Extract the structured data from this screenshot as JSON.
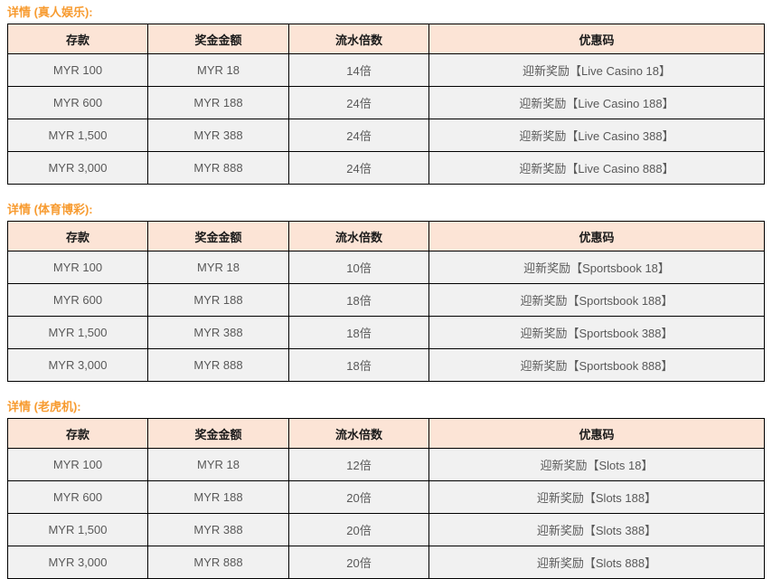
{
  "page": {
    "background": "#ffffff",
    "accent_color": "#F79B30",
    "table_header_bg": "#FCE4D6",
    "table_row_bg": "#F1F1F1",
    "table_border_color": "#000000"
  },
  "columns": [
    "存款",
    "奖金金额",
    "流水倍数",
    "优惠码"
  ],
  "sections": [
    {
      "title": "详情 (真人娱乐):",
      "rows": [
        [
          "MYR 100",
          "MYR 18",
          "14倍",
          "迎新奖励【Live Casino 18】"
        ],
        [
          "MYR 600",
          "MYR 188",
          "24倍",
          "迎新奖励【Live Casino 188】"
        ],
        [
          "MYR 1,500",
          "MYR 388",
          "24倍",
          "迎新奖励【Live Casino 388】"
        ],
        [
          "MYR 3,000",
          "MYR 888",
          "24倍",
          "迎新奖励【Live Casino 888】"
        ]
      ]
    },
    {
      "title": "详情 (体育博彩):",
      "rows": [
        [
          "MYR 100",
          "MYR 18",
          "10倍",
          "迎新奖励【Sportsbook 18】"
        ],
        [
          "MYR 600",
          "MYR 188",
          "18倍",
          "迎新奖励【Sportsbook 188】"
        ],
        [
          "MYR 1,500",
          "MYR 388",
          "18倍",
          "迎新奖励【Sportsbook 388】"
        ],
        [
          "MYR 3,000",
          "MYR 888",
          "18倍",
          "迎新奖励【Sportsbook 888】"
        ]
      ]
    },
    {
      "title": "详情 (老虎机):",
      "rows": [
        [
          "MYR 100",
          "MYR 18",
          "12倍",
          "迎新奖励【Slots 18】"
        ],
        [
          "MYR 600",
          "MYR 188",
          "20倍",
          "迎新奖励【Slots 188】"
        ],
        [
          "MYR 1,500",
          "MYR 388",
          "20倍",
          "迎新奖励【Slots 388】"
        ],
        [
          "MYR 3,000",
          "MYR 888",
          "20倍",
          "迎新奖励【Slots 888】"
        ]
      ]
    }
  ]
}
